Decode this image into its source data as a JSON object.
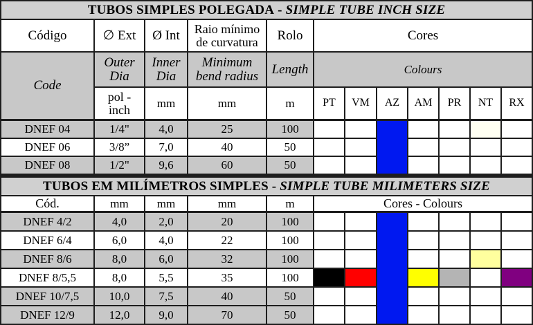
{
  "section1": {
    "title": "TUBOS SIMPLES POLEGADA",
    "sep": "-",
    "title_en": "SIMPLE TUBE INCH SIZE",
    "headers_pt": [
      "Código",
      "∅ Ext",
      "Ø Int",
      "Raio mínimo de curvatura",
      "Rolo",
      "Cores"
    ],
    "headers_en": [
      "Code",
      "Outer Dia",
      "Inner Dia",
      "Minimum bend radius",
      "Length",
      "Colours"
    ],
    "units": [
      "pol - inch",
      "mm",
      "mm",
      "m"
    ],
    "color_codes": [
      "PT",
      "VM",
      "AZ",
      "AM",
      "PR",
      "NT",
      "RX"
    ],
    "rows": [
      {
        "code": "DNEF 04",
        "ext": "1/4\"",
        "int": "4,0",
        "radius": "25",
        "length": "100",
        "colors": [
          "#ffffff",
          "#ffffff",
          "#0018f0",
          "#ffffff",
          "#ffffff",
          "#fffff2",
          "#ffffff"
        ]
      },
      {
        "code": "DNEF 06",
        "ext": "3/8”",
        "int": "7,0",
        "radius": "40",
        "length": "50",
        "colors": [
          "#ffffff",
          "#ffffff",
          "#0018f0",
          "#ffffff",
          "#ffffff",
          "#ffffff",
          "#ffffff"
        ]
      },
      {
        "code": "DNEF 08",
        "ext": "1/2\"",
        "int": "9,6",
        "radius": "60",
        "length": "50",
        "colors": [
          "#ffffff",
          "#ffffff",
          "#0018f0",
          "#ffffff",
          "#ffffff",
          "#ffffff",
          "#ffffff"
        ]
      }
    ]
  },
  "section2": {
    "title": "TUBOS EM MILÍMETROS SIMPLES",
    "sep": "-",
    "title_en": "SIMPLE TUBE MILIMETERS SIZE",
    "headers": [
      "Cód.",
      "mm",
      "mm",
      "mm",
      "m",
      "Cores - Colours"
    ],
    "rows": [
      {
        "code": "DNEF 4/2",
        "ext": "4,0",
        "int": "2,0",
        "radius": "20",
        "length": "100",
        "colors": [
          "#ffffff",
          "#ffffff",
          "#0018f0",
          "#ffffff",
          "#ffffff",
          "#ffffff",
          "#ffffff"
        ]
      },
      {
        "code": "DNEF 6/4",
        "ext": "6,0",
        "int": "4,0",
        "radius": "22",
        "length": "100",
        "colors": [
          "#ffffff",
          "#ffffff",
          "#0018f0",
          "#ffffff",
          "#ffffff",
          "#ffffff",
          "#ffffff"
        ]
      },
      {
        "code": "DNEF 8/6",
        "ext": "8,0",
        "int": "6,0",
        "radius": "32",
        "length": "100",
        "colors": [
          "#ffffff",
          "#ffffff",
          "#0018f0",
          "#ffffff",
          "#ffffff",
          "#ffff9e",
          "#ffffff"
        ]
      },
      {
        "code": "DNEF 8/5,5",
        "ext": "8,0",
        "int": "5,5",
        "radius": "35",
        "length": "100",
        "colors": [
          "#000000",
          "#ff0000",
          "#0018f0",
          "#ffff00",
          "#b4b4b4",
          "#ffffff",
          "#800080"
        ]
      },
      {
        "code": "DNEF 10/7,5",
        "ext": "10,0",
        "int": "7,5",
        "radius": "40",
        "length": "50",
        "colors": [
          "#ffffff",
          "#ffffff",
          "#0018f0",
          "#ffffff",
          "#ffffff",
          "#ffffff",
          "#ffffff"
        ]
      },
      {
        "code": "DNEF 12/9",
        "ext": "12,0",
        "int": "9,0",
        "radius": "70",
        "length": "50",
        "colors": [
          "#ffffff",
          "#ffffff",
          "#0018f0",
          "#ffffff",
          "#ffffff",
          "#ffffff",
          "#ffffff"
        ]
      }
    ]
  }
}
